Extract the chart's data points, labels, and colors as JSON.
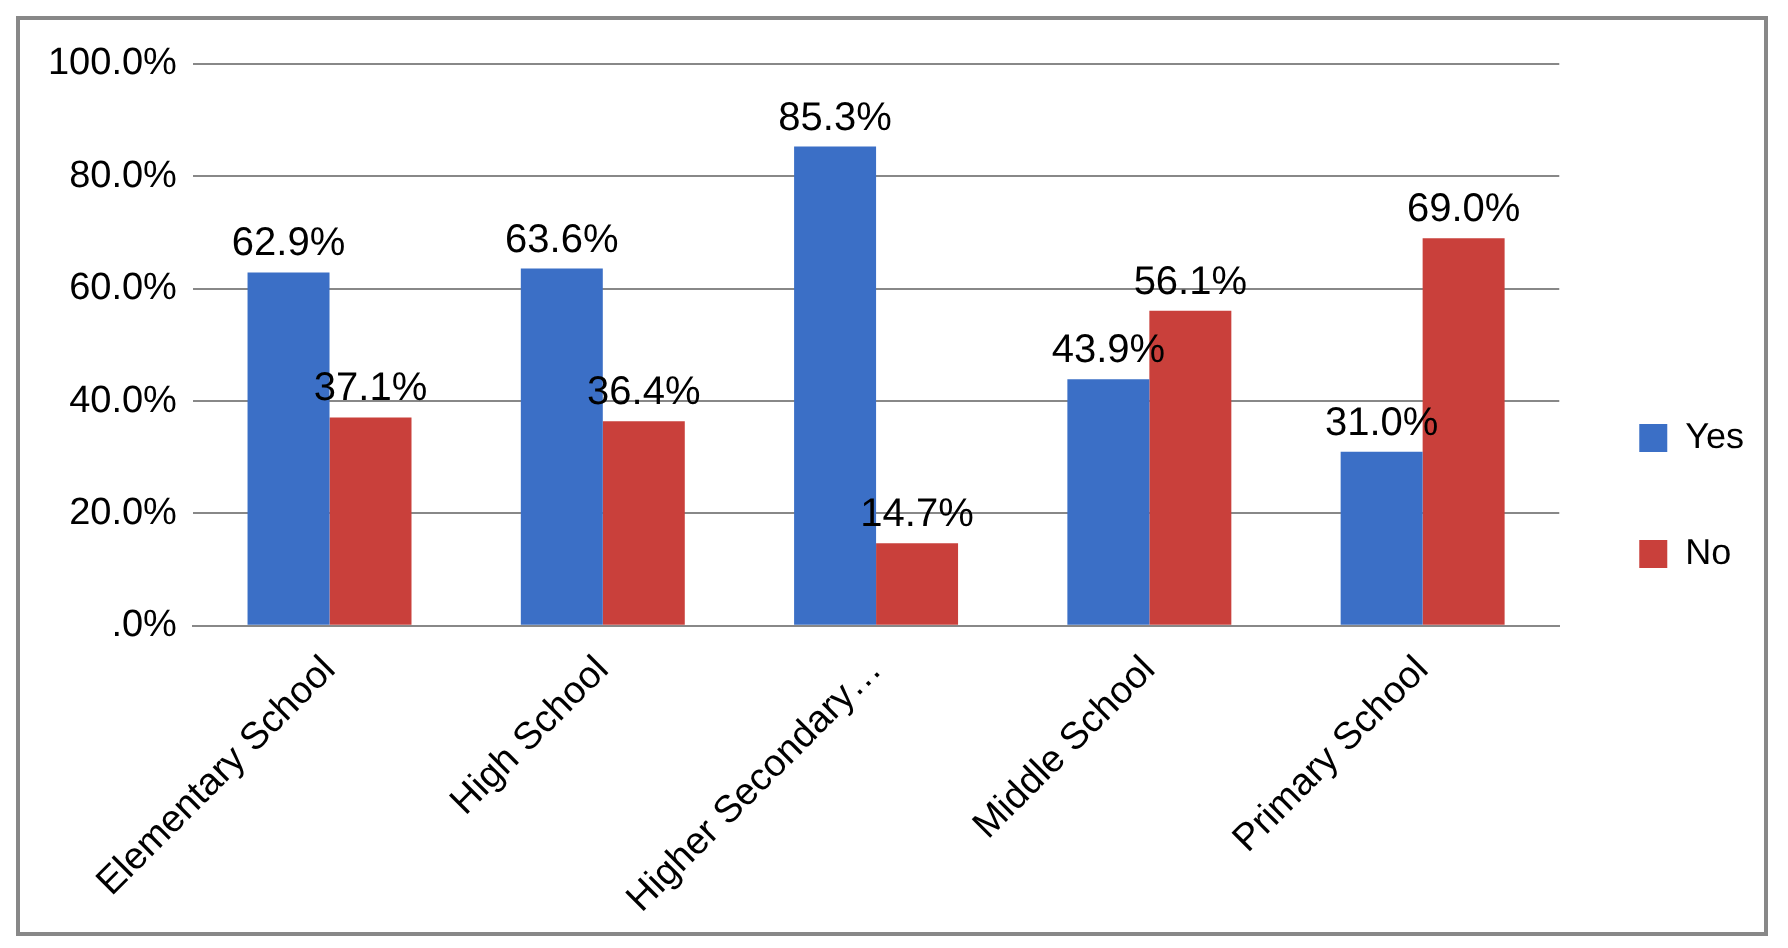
{
  "chart_data": {
    "type": "bar",
    "categories": [
      "Elementary School",
      "High School",
      "Higher Secondary…",
      "Middle School",
      "Primary School"
    ],
    "series": [
      {
        "name": "Yes",
        "color": "#3b6fc6",
        "values": [
          62.9,
          63.6,
          85.3,
          43.9,
          31.0
        ],
        "value_labels": [
          "62.9%",
          "63.6%",
          "85.3%",
          "43.9%",
          "31.0%"
        ]
      },
      {
        "name": "No",
        "color": "#c9403b",
        "values": [
          37.1,
          36.4,
          14.7,
          56.1,
          69.0
        ],
        "value_labels": [
          "37.1%",
          "36.4%",
          "14.7%",
          "56.1%",
          "69.0%"
        ]
      }
    ],
    "ylim": [
      0,
      100
    ],
    "yticks": [
      {
        "value": 0,
        "label": ".0%"
      },
      {
        "value": 20,
        "label": "20.0%"
      },
      {
        "value": 40,
        "label": "40.0%"
      },
      {
        "value": 60,
        "label": "60.0%"
      },
      {
        "value": 80,
        "label": "80.0%"
      },
      {
        "value": 100,
        "label": "100.0%"
      }
    ],
    "grid": "y",
    "legend": "right"
  }
}
